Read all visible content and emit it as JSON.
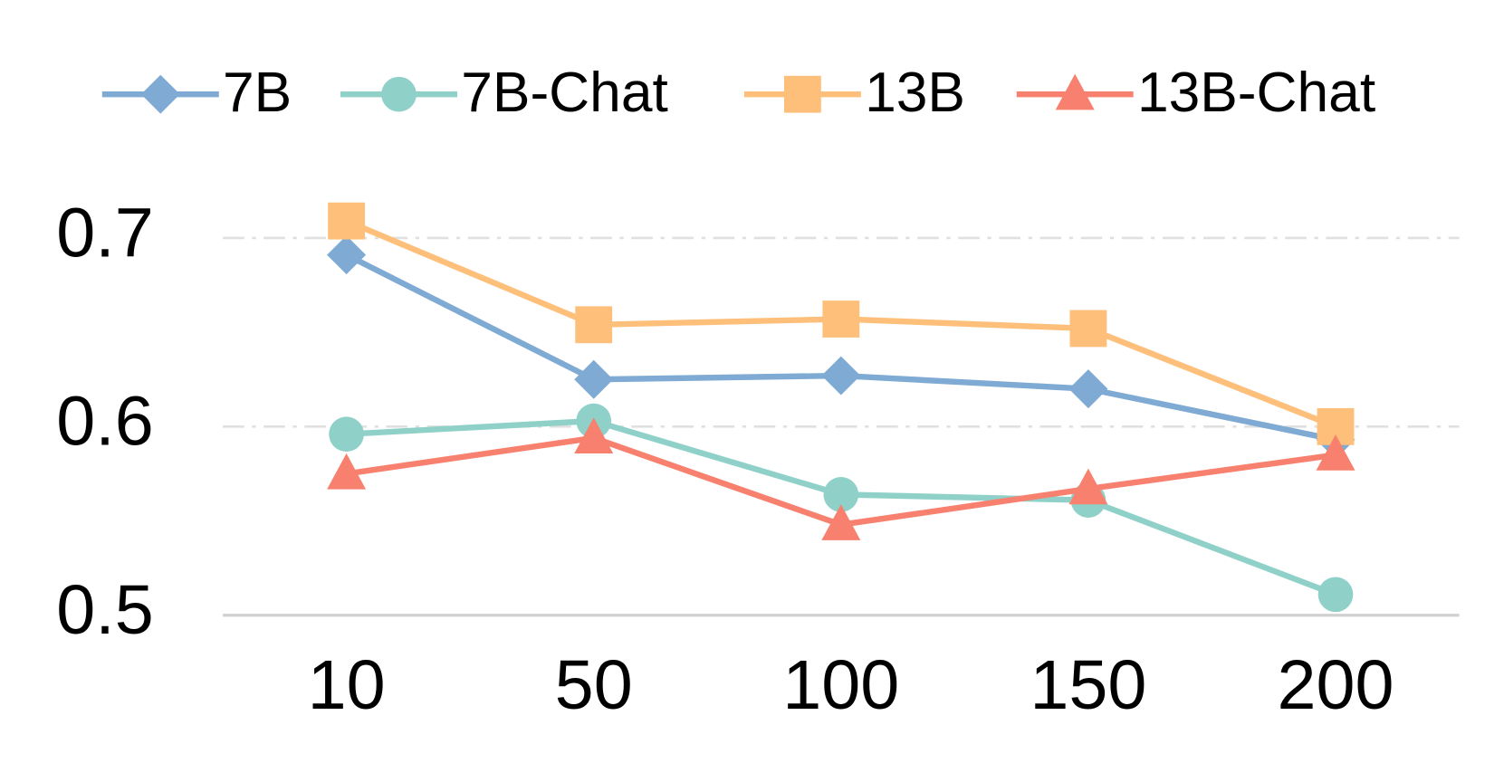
{
  "chart_data": {
    "type": "line",
    "categories": [
      "10",
      "50",
      "100",
      "150",
      "200"
    ],
    "series": [
      {
        "name": "7B",
        "color": "#7eaad3",
        "marker": "diamond",
        "values": [
          0.691,
          0.625,
          0.627,
          0.62,
          0.593
        ]
      },
      {
        "name": "7B-Chat",
        "color": "#8fd1c8",
        "marker": "circle",
        "values": [
          0.596,
          0.603,
          0.564,
          0.561,
          0.511
        ]
      },
      {
        "name": "13B",
        "color": "#fdbf7a",
        "marker": "square",
        "values": [
          0.709,
          0.654,
          0.657,
          0.652,
          0.6
        ]
      },
      {
        "name": "13B-Chat",
        "color": "#f8806f",
        "marker": "triangle",
        "values": [
          0.575,
          0.594,
          0.548,
          0.567,
          0.585
        ]
      }
    ],
    "ylim": [
      0.5,
      0.72
    ],
    "yticks": [
      0.5,
      0.6,
      0.7
    ],
    "grid": true,
    "legend": "top"
  }
}
